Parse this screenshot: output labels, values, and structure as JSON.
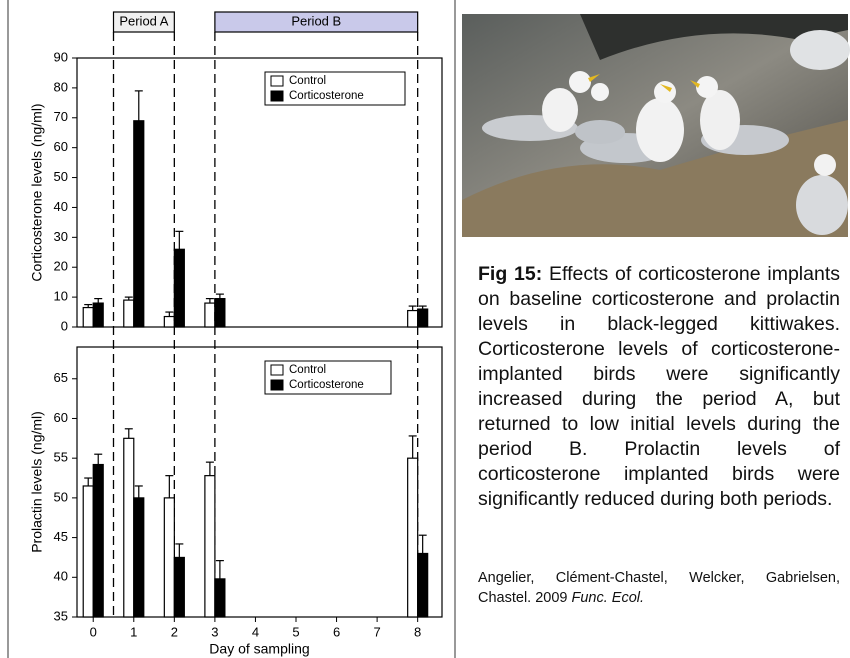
{
  "chart_data": [
    {
      "type": "bar",
      "ylabel": "Corticosterone levels (ng/ml)",
      "x": [
        0,
        1,
        2,
        3,
        8
      ],
      "xlim": [
        -0.4,
        8.6
      ],
      "ylim": [
        0,
        90
      ],
      "yticks": [
        0,
        10,
        20,
        30,
        40,
        50,
        60,
        70,
        80,
        90
      ],
      "series": [
        {
          "name": "Control",
          "color": "#ffffff",
          "values": [
            6.5,
            9,
            3.5,
            8,
            5.5
          ],
          "errors": [
            1,
            1,
            1.5,
            1.5,
            1.5
          ]
        },
        {
          "name": "Corticosterone",
          "color": "#000000",
          "values": [
            8,
            69,
            26,
            9.5,
            6
          ],
          "errors": [
            1.5,
            10,
            6,
            1.5,
            1
          ]
        }
      ],
      "periods": [
        {
          "label": "Period A",
          "start": 0.5,
          "end": 2,
          "color": "#f0f0f0"
        },
        {
          "label": "Period B",
          "start": 3,
          "end": 8,
          "color": "#c9c9ea"
        }
      ]
    },
    {
      "type": "bar",
      "ylabel": "Prolactin levels (ng/ml)",
      "xlabel": "Day of sampling",
      "x": [
        0,
        1,
        2,
        3,
        8
      ],
      "xlim": [
        -0.4,
        8.6
      ],
      "xticks": [
        0,
        1,
        2,
        3,
        4,
        5,
        6,
        7,
        8
      ],
      "ylim": [
        35,
        69
      ],
      "yticks": [
        35,
        40,
        45,
        50,
        55,
        60,
        65
      ],
      "series": [
        {
          "name": "Control",
          "color": "#ffffff",
          "values": [
            51.5,
            57.5,
            50,
            52.8,
            55
          ],
          "errors": [
            1,
            1.2,
            2.8,
            1.7,
            2.8
          ]
        },
        {
          "name": "Corticosterone",
          "color": "#000000",
          "values": [
            54.2,
            50,
            42.5,
            39.8,
            43
          ],
          "errors": [
            1.3,
            1.5,
            1.7,
            2.3,
            2.3
          ]
        }
      ]
    }
  ],
  "caption": {
    "label": "Fig 15:",
    "text": "Effects of corticosterone implants on baseline corticosterone and prolactin levels in black-legged kittiwakes. Corticosterone levels of corticosterone-implanted birds were significantly increased during the period A, but returned to low initial levels during the period B. Prolactin levels of corticosterone implanted birds were significantly reduced during both periods."
  },
  "citation": {
    "authors": "Angelier, Clément-Chastel, Welcker, Gabrielsen, Chastel. 2009",
    "journal": "Func. Ecol."
  }
}
